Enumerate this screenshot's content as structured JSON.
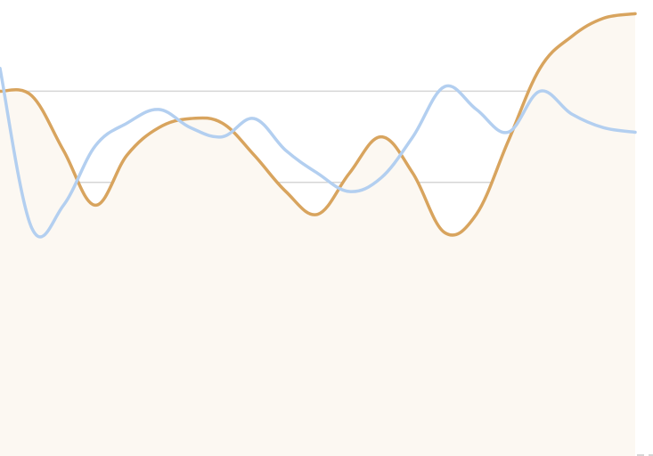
{
  "chart_data": {
    "type": "line",
    "title": "",
    "xlabel": "",
    "ylabel": "",
    "x": [
      0,
      1,
      2,
      3,
      4,
      5,
      6,
      7,
      8,
      9,
      10,
      11,
      12,
      13,
      14,
      15,
      16,
      17,
      18,
      19,
      20
    ],
    "ylim": [
      0,
      100
    ],
    "grid": true,
    "legend": "none",
    "series": [
      {
        "values": [
          80,
          79,
          67,
          55,
          66,
          72,
          74,
          73,
          66,
          58,
          53,
          62,
          70,
          62,
          49,
          53,
          69,
          85,
          92,
          96,
          97
        ],
        "color": "#d8a45e",
        "fill": "#fcf8f2",
        "area": true
      },
      {
        "values": [
          85,
          50,
          55,
          68,
          73,
          76,
          72,
          70,
          74,
          67,
          62,
          58,
          61,
          70,
          81,
          76,
          71,
          80,
          75,
          72,
          71
        ],
        "color": "#b3cff0",
        "fill": null,
        "area": false
      }
    ],
    "colors": {
      "grid": "#d6d6d6",
      "baseline": "#d6d6d6"
    }
  }
}
